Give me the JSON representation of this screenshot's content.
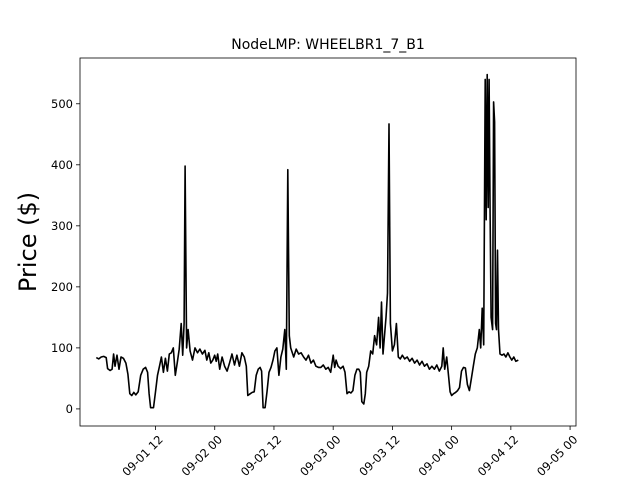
{
  "chart_data": {
    "type": "line",
    "title": "NodeLMP: WHEELBR1_7_B1",
    "xlabel": "",
    "ylabel": "Price ($)",
    "x_unit": "hours from 2022-09-01 00:00",
    "xlim": [
      -3.3,
      97.2
    ],
    "ylim": [
      -28,
      575
    ],
    "grid": false,
    "legend": "none",
    "x_ticks": [
      {
        "value": 12,
        "label": "09-01 12"
      },
      {
        "value": 24,
        "label": "09-02 00"
      },
      {
        "value": 36,
        "label": "09-02 12"
      },
      {
        "value": 48,
        "label": "09-03 00"
      },
      {
        "value": 60,
        "label": "09-03 12"
      },
      {
        "value": 72,
        "label": "09-04 00"
      },
      {
        "value": 84,
        "label": "09-04 12"
      },
      {
        "value": 96,
        "label": "09-05 00"
      }
    ],
    "y_ticks": [
      0,
      100,
      200,
      300,
      400,
      500
    ],
    "series": [
      {
        "color": "#000000",
        "points": [
          [
            0,
            84
          ],
          [
            0.5,
            82
          ],
          [
            1,
            85
          ],
          [
            1.5,
            86
          ],
          [
            2,
            84
          ],
          [
            2.3,
            66
          ],
          [
            2.8,
            63
          ],
          [
            3.2,
            65
          ],
          [
            3.5,
            90
          ],
          [
            3.8,
            70
          ],
          [
            4.2,
            88
          ],
          [
            4.6,
            65
          ],
          [
            5,
            85
          ],
          [
            5.5,
            83
          ],
          [
            6,
            75
          ],
          [
            6.4,
            57
          ],
          [
            6.8,
            25
          ],
          [
            7.2,
            22
          ],
          [
            7.6,
            27
          ],
          [
            8,
            23
          ],
          [
            8.5,
            28
          ],
          [
            9,
            55
          ],
          [
            9.5,
            65
          ],
          [
            10,
            68
          ],
          [
            10.4,
            60
          ],
          [
            10.7,
            25
          ],
          [
            11,
            2
          ],
          [
            11.6,
            2
          ],
          [
            12,
            28
          ],
          [
            12.4,
            55
          ],
          [
            12.8,
            70
          ],
          [
            13.2,
            85
          ],
          [
            13.6,
            60
          ],
          [
            14,
            83
          ],
          [
            14.4,
            62
          ],
          [
            14.8,
            90
          ],
          [
            15.2,
            92
          ],
          [
            15.6,
            100
          ],
          [
            16,
            55
          ],
          [
            16.4,
            75
          ],
          [
            16.8,
            98
          ],
          [
            17.2,
            140
          ],
          [
            17.5,
            88
          ],
          [
            17.8,
            140
          ],
          [
            18,
            398
          ],
          [
            18.3,
            100
          ],
          [
            18.6,
            130
          ],
          [
            19,
            95
          ],
          [
            19.5,
            80
          ],
          [
            20,
            100
          ],
          [
            20.5,
            92
          ],
          [
            21,
            98
          ],
          [
            21.5,
            90
          ],
          [
            22,
            96
          ],
          [
            22.4,
            80
          ],
          [
            22.8,
            92
          ],
          [
            23.2,
            75
          ],
          [
            23.6,
            80
          ],
          [
            24,
            88
          ],
          [
            24.3,
            78
          ],
          [
            24.6,
            90
          ],
          [
            25,
            65
          ],
          [
            25.5,
            85
          ],
          [
            26,
            70
          ],
          [
            26.5,
            62
          ],
          [
            27,
            75
          ],
          [
            27.5,
            90
          ],
          [
            28,
            72
          ],
          [
            28.5,
            88
          ],
          [
            29,
            70
          ],
          [
            29.5,
            92
          ],
          [
            30,
            85
          ],
          [
            30.4,
            70
          ],
          [
            30.7,
            22
          ],
          [
            31.2,
            25
          ],
          [
            31.6,
            27
          ],
          [
            32,
            28
          ],
          [
            32.4,
            55
          ],
          [
            32.8,
            65
          ],
          [
            33.2,
            68
          ],
          [
            33.5,
            62
          ],
          [
            33.8,
            2
          ],
          [
            34.2,
            2
          ],
          [
            34.6,
            28
          ],
          [
            35,
            60
          ],
          [
            35.4,
            68
          ],
          [
            35.8,
            80
          ],
          [
            36.2,
            95
          ],
          [
            36.6,
            100
          ],
          [
            37,
            55
          ],
          [
            37.4,
            85
          ],
          [
            37.8,
            98
          ],
          [
            38.2,
            130
          ],
          [
            38.5,
            65
          ],
          [
            38.8,
            392
          ],
          [
            39.1,
            120
          ],
          [
            39.4,
            100
          ],
          [
            40,
            85
          ],
          [
            40.5,
            98
          ],
          [
            41,
            90
          ],
          [
            41.5,
            92
          ],
          [
            42,
            85
          ],
          [
            42.5,
            80
          ],
          [
            43,
            88
          ],
          [
            43.5,
            75
          ],
          [
            44,
            80
          ],
          [
            44.5,
            70
          ],
          [
            45,
            68
          ],
          [
            45.5,
            68
          ],
          [
            46,
            72
          ],
          [
            46.5,
            65
          ],
          [
            47,
            68
          ],
          [
            47.5,
            60
          ],
          [
            48,
            88
          ],
          [
            48.3,
            68
          ],
          [
            48.6,
            80
          ],
          [
            49,
            70
          ],
          [
            49.5,
            66
          ],
          [
            50,
            70
          ],
          [
            50.4,
            60
          ],
          [
            50.8,
            25
          ],
          [
            51.2,
            28
          ],
          [
            51.6,
            26
          ],
          [
            52,
            30
          ],
          [
            52.4,
            55
          ],
          [
            52.8,
            65
          ],
          [
            53.2,
            65
          ],
          [
            53.5,
            60
          ],
          [
            53.8,
            12
          ],
          [
            54.2,
            8
          ],
          [
            54.5,
            25
          ],
          [
            54.8,
            60
          ],
          [
            55.2,
            70
          ],
          [
            55.6,
            95
          ],
          [
            56,
            90
          ],
          [
            56.4,
            120
          ],
          [
            56.8,
            105
          ],
          [
            57.2,
            150
          ],
          [
            57.5,
            100
          ],
          [
            57.8,
            175
          ],
          [
            58.1,
            90
          ],
          [
            58.4,
            120
          ],
          [
            58.7,
            150
          ],
          [
            59,
            190
          ],
          [
            59.3,
            467
          ],
          [
            59.6,
            140
          ],
          [
            60,
            95
          ],
          [
            60.4,
            105
          ],
          [
            60.8,
            140
          ],
          [
            61.2,
            85
          ],
          [
            61.6,
            82
          ],
          [
            62,
            88
          ],
          [
            62.5,
            82
          ],
          [
            63,
            85
          ],
          [
            63.5,
            78
          ],
          [
            64,
            83
          ],
          [
            64.5,
            75
          ],
          [
            65,
            80
          ],
          [
            65.5,
            72
          ],
          [
            66,
            78
          ],
          [
            66.5,
            70
          ],
          [
            67,
            74
          ],
          [
            67.5,
            65
          ],
          [
            68,
            70
          ],
          [
            68.5,
            65
          ],
          [
            69,
            72
          ],
          [
            69.5,
            62
          ],
          [
            70,
            70
          ],
          [
            70.3,
            100
          ],
          [
            70.6,
            65
          ],
          [
            71,
            85
          ],
          [
            71.3,
            60
          ],
          [
            71.7,
            28
          ],
          [
            72,
            22
          ],
          [
            72.4,
            25
          ],
          [
            72.8,
            27
          ],
          [
            73.2,
            30
          ],
          [
            73.6,
            35
          ],
          [
            74,
            62
          ],
          [
            74.4,
            68
          ],
          [
            74.8,
            67
          ],
          [
            75.2,
            40
          ],
          [
            75.6,
            30
          ],
          [
            76,
            50
          ],
          [
            76.4,
            70
          ],
          [
            76.8,
            90
          ],
          [
            77.2,
            100
          ],
          [
            77.6,
            130
          ],
          [
            77.9,
            100
          ],
          [
            78.2,
            165
          ],
          [
            78.5,
            105
          ],
          [
            78.8,
            540
          ],
          [
            79,
            310
          ],
          [
            79.2,
            548
          ],
          [
            79.4,
            330
          ],
          [
            79.6,
            540
          ],
          [
            79.8,
            320
          ],
          [
            80,
            150
          ],
          [
            80.3,
            130
          ],
          [
            80.5,
            503
          ],
          [
            80.7,
            470
          ],
          [
            80.9,
            140
          ],
          [
            81.1,
            130
          ],
          [
            81.3,
            260
          ],
          [
            81.5,
            130
          ],
          [
            81.8,
            90
          ],
          [
            82.2,
            88
          ],
          [
            82.6,
            90
          ],
          [
            83,
            85
          ],
          [
            83.4,
            92
          ],
          [
            83.8,
            85
          ],
          [
            84.2,
            80
          ],
          [
            84.6,
            85
          ],
          [
            85,
            78
          ],
          [
            85.5,
            80
          ]
        ]
      }
    ]
  }
}
